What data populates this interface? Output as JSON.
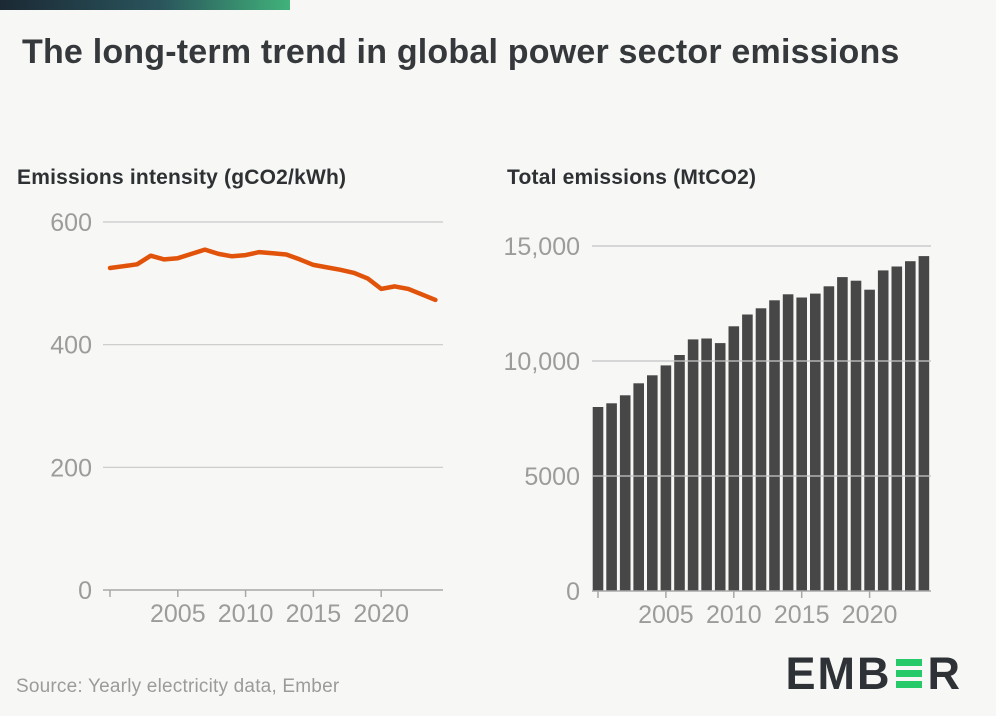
{
  "style": {
    "bg": "#f7f7f5",
    "accent_dark": "#1b2934",
    "accent_teal": "#2a545c",
    "accent_green": "#41b27a",
    "title_color": "#36393c",
    "label_color": "#2e3134",
    "muted": "#9b9b9b",
    "axis_text": "#9c9c9c",
    "gridline": "#c9c9c9",
    "axis_line": "#a8a8a8",
    "line_color": "#e1530b",
    "bar_color": "#474747",
    "logo_dark": "#2e3237",
    "logo_green": "#27ca68"
  },
  "header": {
    "title": "The long-term trend in global power sector emissions"
  },
  "chart_data": [
    {
      "type": "line",
      "title": "Emissions intensity (gCO2/kWh)",
      "series_name": "Emissions intensity",
      "series_color": "#e1530b",
      "x": [
        2000,
        2001,
        2002,
        2003,
        2004,
        2005,
        2006,
        2007,
        2008,
        2009,
        2010,
        2011,
        2012,
        2013,
        2014,
        2015,
        2016,
        2017,
        2018,
        2019,
        2020,
        2021,
        2022,
        2023,
        2024
      ],
      "values": [
        525,
        528,
        531,
        545,
        539,
        541,
        548,
        555,
        548,
        544,
        546,
        551,
        549,
        547,
        539,
        530,
        526,
        522,
        517,
        508,
        491,
        495,
        491,
        482,
        473
      ],
      "ylim": [
        0,
        600
      ],
      "yticks": [
        0,
        200,
        400,
        600
      ],
      "ytick_labels": [
        "0",
        "200",
        "400",
        "600"
      ],
      "xtick_marks": [
        2000,
        2005,
        2010,
        2015,
        2020
      ],
      "xticks_labeled": [
        2005,
        2010,
        2015,
        2020
      ],
      "grid": "horizontal",
      "legend": "none"
    },
    {
      "type": "bar",
      "title": "Total emissions (MtCO2)",
      "series_name": "Total emissions",
      "series_color": "#474747",
      "x": [
        2000,
        2001,
        2002,
        2003,
        2004,
        2005,
        2006,
        2007,
        2008,
        2009,
        2010,
        2011,
        2012,
        2013,
        2014,
        2015,
        2016,
        2017,
        2018,
        2019,
        2020,
        2021,
        2022,
        2023,
        2024
      ],
      "values": [
        8000,
        8160,
        8510,
        9030,
        9380,
        9810,
        10260,
        10940,
        10980,
        10780,
        11510,
        12020,
        12290,
        12640,
        12900,
        12760,
        12930,
        13250,
        13650,
        13490,
        13100,
        13940,
        14110,
        14340,
        14560
      ],
      "ylim": [
        0,
        15000
      ],
      "yticks": [
        0,
        5000,
        10000,
        15000
      ],
      "ytick_labels": [
        "0",
        "5000",
        "10,000",
        "15,000"
      ],
      "xtick_marks": [
        2000,
        2005,
        2010,
        2015,
        2020
      ],
      "xticks_labeled": [
        2005,
        2010,
        2015,
        2020
      ],
      "grid": "horizontal",
      "legend": "none"
    }
  ],
  "footer": {
    "source": "Source: Yearly electricity data, Ember",
    "logo": {
      "prefix": "EMB",
      "suffix": "R",
      "green_letter": "E"
    }
  }
}
